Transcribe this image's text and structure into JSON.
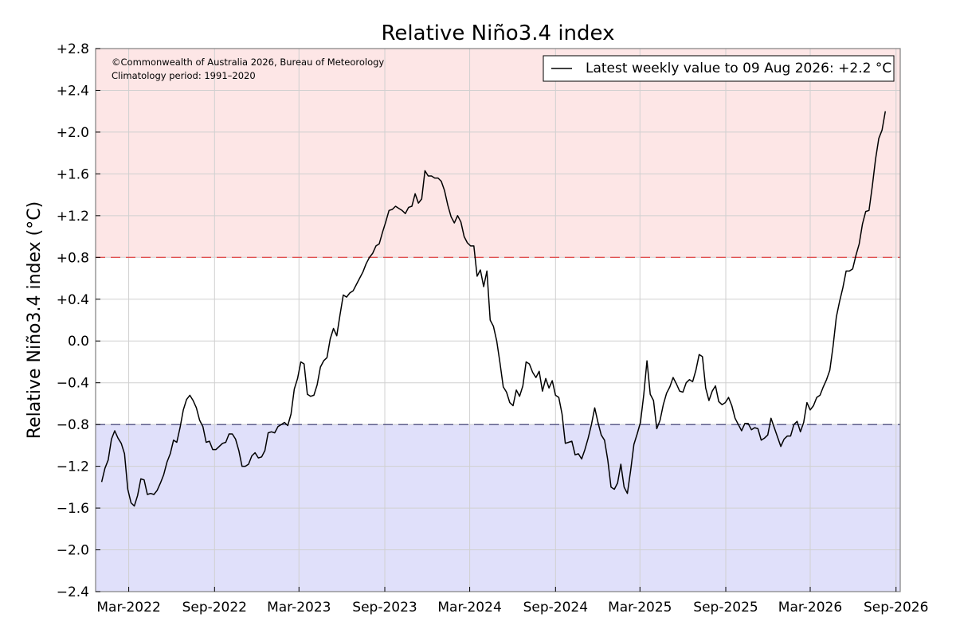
{
  "chart_data": {
    "type": "line",
    "title": "Relative Niño3.4 index",
    "ylabel": "Relative Niño3.4 index (°C)",
    "xlabel": "",
    "ylim": [
      -2.4,
      2.8
    ],
    "y_ticks": [
      -2.4,
      -2.0,
      -1.6,
      -1.2,
      -0.8,
      -0.4,
      0.0,
      0.4,
      0.8,
      1.2,
      1.6,
      2.0,
      2.4,
      2.8
    ],
    "y_tick_labels": [
      "−2.4",
      "−2.0",
      "−1.6",
      "−1.2",
      "−0.8",
      "−0.4",
      "0.0",
      "+0.4",
      "+0.8",
      "+1.2",
      "+1.6",
      "+2.0",
      "+2.4",
      "+2.8"
    ],
    "xlim": [
      "2021-12-20",
      "2026-09-10"
    ],
    "x_ticks": [
      "2022-03-01",
      "2022-09-01",
      "2023-03-01",
      "2023-09-01",
      "2024-03-01",
      "2024-09-01",
      "2025-03-01",
      "2025-09-01",
      "2026-03-01",
      "2026-09-01"
    ],
    "x_tick_labels": [
      "Mar-2022",
      "Sep-2022",
      "Mar-2023",
      "Sep-2023",
      "Mar-2024",
      "Sep-2024",
      "Mar-2025",
      "Sep-2025",
      "Mar-2026",
      "Sep-2026"
    ],
    "grid": true,
    "thresholds": [
      {
        "value": 0.8,
        "color": "#e05050",
        "style": "dashed"
      },
      {
        "value": -0.8,
        "color": "#505080",
        "style": "dashed"
      }
    ],
    "regions": [
      {
        "from": 0.8,
        "to": 2.8,
        "color": "#fde6e6"
      },
      {
        "from": -2.4,
        "to": -0.8,
        "color": "#e0e0fa"
      }
    ],
    "zero_line_color": "#a8a8a8",
    "line_color": "#000000",
    "annotations": [
      "©Commonwealth of Australia 2026, Bureau of Meteorology",
      "Climatology period: 1991–2020"
    ],
    "legend": {
      "placement": "top-right",
      "entry": "Latest weekly value to 09 Aug 2026: +2.2 °C"
    },
    "series": [
      {
        "x": [
          "2022-01-02",
          "2022-01-09",
          "2022-01-16",
          "2022-01-23",
          "2022-01-30",
          "2022-02-06",
          "2022-02-13",
          "2022-02-20",
          "2022-02-27",
          "2022-03-06",
          "2022-03-13",
          "2022-03-20",
          "2022-03-27",
          "2022-04-03",
          "2022-04-10",
          "2022-04-17",
          "2022-04-24",
          "2022-05-01",
          "2022-05-08",
          "2022-05-15",
          "2022-05-22",
          "2022-05-29",
          "2022-06-05",
          "2022-06-12",
          "2022-06-19",
          "2022-06-26",
          "2022-07-03",
          "2022-07-10",
          "2022-07-17",
          "2022-07-24",
          "2022-07-31",
          "2022-08-07",
          "2022-08-14",
          "2022-08-21",
          "2022-08-28",
          "2022-09-04",
          "2022-09-11",
          "2022-09-18",
          "2022-09-25",
          "2022-10-02",
          "2022-10-09",
          "2022-10-16",
          "2022-10-23",
          "2022-10-30",
          "2022-11-06",
          "2022-11-13",
          "2022-11-20",
          "2022-11-27",
          "2022-12-04",
          "2022-12-11",
          "2022-12-18",
          "2022-12-25",
          "2023-01-01",
          "2023-01-08",
          "2023-01-15",
          "2023-01-22",
          "2023-01-29",
          "2023-02-05",
          "2023-02-12",
          "2023-02-19",
          "2023-02-26",
          "2023-03-05",
          "2023-03-12",
          "2023-03-19",
          "2023-03-26",
          "2023-04-02",
          "2023-04-09",
          "2023-04-16",
          "2023-04-23",
          "2023-04-30",
          "2023-05-07",
          "2023-05-14",
          "2023-05-21",
          "2023-05-28",
          "2023-06-04",
          "2023-06-11",
          "2023-06-18",
          "2023-06-25",
          "2023-07-02",
          "2023-07-09",
          "2023-07-16",
          "2023-07-23",
          "2023-07-30",
          "2023-08-06",
          "2023-08-13",
          "2023-08-20",
          "2023-08-27",
          "2023-09-03",
          "2023-09-10",
          "2023-09-17",
          "2023-09-24",
          "2023-10-01",
          "2023-10-08",
          "2023-10-15",
          "2023-10-22",
          "2023-10-29",
          "2023-11-05",
          "2023-11-12",
          "2023-11-19",
          "2023-11-26",
          "2023-12-03",
          "2023-12-10",
          "2023-12-17",
          "2023-12-24",
          "2023-12-31",
          "2024-01-07",
          "2024-01-14",
          "2024-01-21",
          "2024-01-28",
          "2024-02-04",
          "2024-02-11",
          "2024-02-18",
          "2024-02-25",
          "2024-03-03",
          "2024-03-10",
          "2024-03-17",
          "2024-03-24",
          "2024-03-31",
          "2024-04-07",
          "2024-04-14",
          "2024-04-21",
          "2024-04-28",
          "2024-05-05",
          "2024-05-12",
          "2024-05-19",
          "2024-05-26",
          "2024-06-02",
          "2024-06-09",
          "2024-06-16",
          "2024-06-23",
          "2024-06-30",
          "2024-07-07",
          "2024-07-14",
          "2024-07-21",
          "2024-07-28",
          "2024-08-04",
          "2024-08-11",
          "2024-08-18",
          "2024-08-25",
          "2024-09-01",
          "2024-09-08",
          "2024-09-15",
          "2024-09-22",
          "2024-09-29",
          "2024-10-06",
          "2024-10-13",
          "2024-10-20",
          "2024-10-27",
          "2024-11-03",
          "2024-11-10",
          "2024-11-17",
          "2024-11-24",
          "2024-12-01",
          "2024-12-08",
          "2024-12-15",
          "2024-12-22",
          "2024-12-29",
          "2025-01-05",
          "2025-01-12",
          "2025-01-19",
          "2025-01-26",
          "2025-02-02",
          "2025-02-09",
          "2025-02-16",
          "2025-02-23",
          "2025-03-02",
          "2025-03-09",
          "2025-03-16",
          "2025-03-23",
          "2025-03-30",
          "2025-04-06",
          "2025-04-13",
          "2025-04-20",
          "2025-04-27",
          "2025-05-04",
          "2025-05-11",
          "2025-05-18",
          "2025-05-25",
          "2025-06-01",
          "2025-06-08",
          "2025-06-15",
          "2025-06-22",
          "2025-06-29",
          "2025-07-06",
          "2025-07-13",
          "2025-07-20",
          "2025-07-27",
          "2025-08-03",
          "2025-08-10",
          "2025-08-17",
          "2025-08-24",
          "2025-08-31",
          "2025-09-07",
          "2025-09-14",
          "2025-09-21",
          "2025-09-28",
          "2025-10-05",
          "2025-10-12",
          "2025-10-19",
          "2025-10-26",
          "2025-11-02",
          "2025-11-09",
          "2025-11-16",
          "2025-11-23",
          "2025-11-30",
          "2025-12-07",
          "2025-12-14",
          "2025-12-21",
          "2025-12-28",
          "2026-01-04",
          "2026-01-11",
          "2026-01-18",
          "2026-01-25",
          "2026-02-01",
          "2026-02-08",
          "2026-02-15",
          "2026-02-22",
          "2026-03-01",
          "2026-03-08",
          "2026-03-15",
          "2026-03-22",
          "2026-03-29",
          "2026-04-05",
          "2026-04-12",
          "2026-04-19",
          "2026-04-26",
          "2026-05-03",
          "2026-05-10",
          "2026-05-17",
          "2026-05-24",
          "2026-05-31",
          "2026-06-07",
          "2026-06-14",
          "2026-06-21",
          "2026-06-28",
          "2026-07-05",
          "2026-07-12",
          "2026-07-19",
          "2026-07-26",
          "2026-08-02",
          "2026-08-09"
        ],
        "values": [
          -1.35,
          -1.22,
          -1.14,
          -0.94,
          -0.86,
          -0.93,
          -0.98,
          -1.08,
          -1.42,
          -1.55,
          -1.58,
          -1.48,
          -1.32,
          -1.33,
          -1.47,
          -1.46,
          -1.47,
          -1.43,
          -1.36,
          -1.28,
          -1.16,
          -1.08,
          -0.95,
          -0.97,
          -0.83,
          -0.66,
          -0.56,
          -0.52,
          -0.57,
          -0.64,
          -0.76,
          -0.82,
          -0.97,
          -0.96,
          -1.04,
          -1.04,
          -1.01,
          -0.98,
          -0.97,
          -0.89,
          -0.89,
          -0.94,
          -1.05,
          -1.2,
          -1.2,
          -1.18,
          -1.1,
          -1.07,
          -1.12,
          -1.11,
          -1.05,
          -0.88,
          -0.87,
          -0.88,
          -0.82,
          -0.8,
          -0.78,
          -0.81,
          -0.7,
          -0.46,
          -0.36,
          -0.2,
          -0.22,
          -0.51,
          -0.53,
          -0.52,
          -0.42,
          -0.25,
          -0.19,
          -0.16,
          0.02,
          0.12,
          0.05,
          0.25,
          0.44,
          0.42,
          0.46,
          0.48,
          0.54,
          0.6,
          0.66,
          0.74,
          0.8,
          0.84,
          0.91,
          0.93,
          1.04,
          1.14,
          1.25,
          1.26,
          1.29,
          1.27,
          1.25,
          1.22,
          1.28,
          1.29,
          1.41,
          1.32,
          1.36,
          1.63,
          1.58,
          1.58,
          1.56,
          1.56,
          1.53,
          1.44,
          1.3,
          1.19,
          1.13,
          1.2,
          1.14,
          1.0,
          0.94,
          0.91,
          0.91,
          0.62,
          0.68,
          0.52,
          0.67,
          0.2,
          0.14,
          0.0,
          -0.21,
          -0.44,
          -0.49,
          -0.59,
          -0.62,
          -0.47,
          -0.53,
          -0.43,
          -0.2,
          -0.22,
          -0.3,
          -0.35,
          -0.29,
          -0.48,
          -0.36,
          -0.45,
          -0.38,
          -0.52,
          -0.54,
          -0.7,
          -0.98,
          -0.97,
          -0.96,
          -1.09,
          -1.08,
          -1.13,
          -1.04,
          -0.93,
          -0.8,
          -0.64,
          -0.78,
          -0.9,
          -0.95,
          -1.14,
          -1.4,
          -1.42,
          -1.36,
          -1.18,
          -1.4,
          -1.46,
          -1.24,
          -0.99,
          -0.89,
          -0.78,
          -0.52,
          -0.19,
          -0.51,
          -0.57,
          -0.84,
          -0.76,
          -0.61,
          -0.5,
          -0.44,
          -0.35,
          -0.41,
          -0.48,
          -0.49,
          -0.4,
          -0.37,
          -0.39,
          -0.28,
          -0.13,
          -0.15,
          -0.45,
          -0.57,
          -0.48,
          -0.43,
          -0.58,
          -0.61,
          -0.59,
          -0.54,
          -0.62,
          -0.74,
          -0.8,
          -0.86,
          -0.79,
          -0.79,
          -0.85,
          -0.83,
          -0.84,
          -0.95,
          -0.93,
          -0.9,
          -0.74,
          -0.83,
          -0.92,
          -1.01,
          -0.94,
          -0.91,
          -0.91,
          -0.8,
          -0.77,
          -0.87,
          -0.78,
          -0.59,
          -0.66,
          -0.62,
          -0.54,
          -0.52,
          -0.44,
          -0.37,
          -0.28,
          -0.05,
          0.23,
          0.38,
          0.51,
          0.67,
          0.67,
          0.69,
          0.82,
          0.93,
          1.12,
          1.24,
          1.25,
          1.48,
          1.74,
          1.94,
          2.02,
          2.2
        ]
      }
    ]
  }
}
